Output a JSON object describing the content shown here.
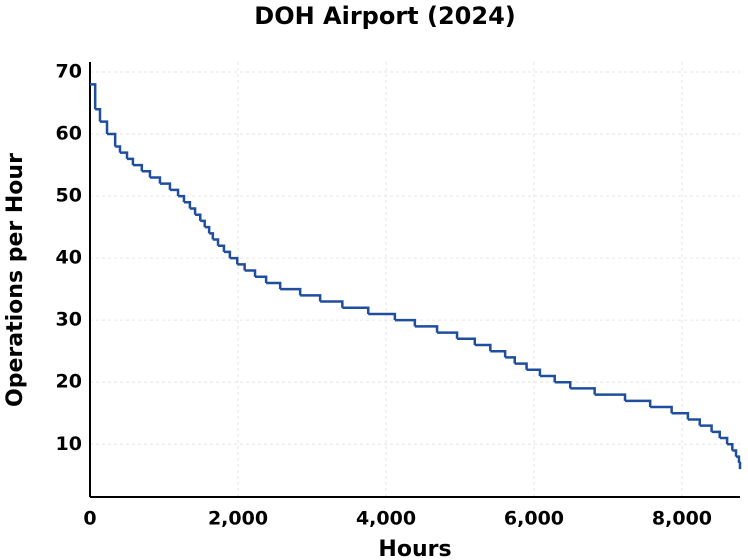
{
  "chart_data": {
    "type": "step",
    "step": "post",
    "title": "DOH Airport (2024)",
    "x_label": "Hours",
    "y_label": "Operations per Hour",
    "x": [
      0,
      70,
      135,
      230,
      340,
      405,
      500,
      580,
      700,
      810,
      945,
      1080,
      1190,
      1270,
      1350,
      1420,
      1490,
      1550,
      1610,
      1660,
      1730,
      1810,
      1890,
      1990,
      2090,
      2230,
      2380,
      2570,
      2840,
      3110,
      3410,
      3760,
      4120,
      4390,
      4690,
      4960,
      5200,
      5410,
      5610,
      5740,
      5900,
      6080,
      6280,
      6490,
      6820,
      7230,
      7570,
      7860,
      8080,
      8240,
      8400,
      8510,
      8610,
      8680,
      8730,
      8770,
      8784
    ],
    "series": [
      {
        "name": "Operations per Hour",
        "color": "#1f4e9e",
        "values": [
          68,
          64,
          62,
          60,
          58,
          57,
          56,
          55,
          54,
          53,
          52,
          51,
          50,
          49,
          48,
          47,
          46,
          45,
          44,
          43,
          42,
          41,
          40,
          39,
          38,
          37,
          36,
          35,
          34,
          33,
          32,
          31,
          30,
          29,
          28,
          27,
          26,
          25,
          24,
          23,
          22,
          21,
          20,
          19,
          18,
          17,
          16,
          15,
          14,
          13,
          12,
          11,
          10,
          9,
          8,
          7,
          6
        ]
      }
    ],
    "xlim": [
      0,
      8784
    ],
    "ylim": [
      1.5,
      70
    ],
    "xticks": [
      0,
      {
        "value": 2000,
        "label": "2,000"
      },
      {
        "value": 4000,
        "label": "4,000"
      },
      {
        "value": 6000,
        "label": "6,000"
      },
      {
        "value": 8000,
        "label": "8,000"
      }
    ],
    "yticks": [
      10,
      20,
      30,
      40,
      50,
      60,
      70
    ],
    "grid": true
  }
}
